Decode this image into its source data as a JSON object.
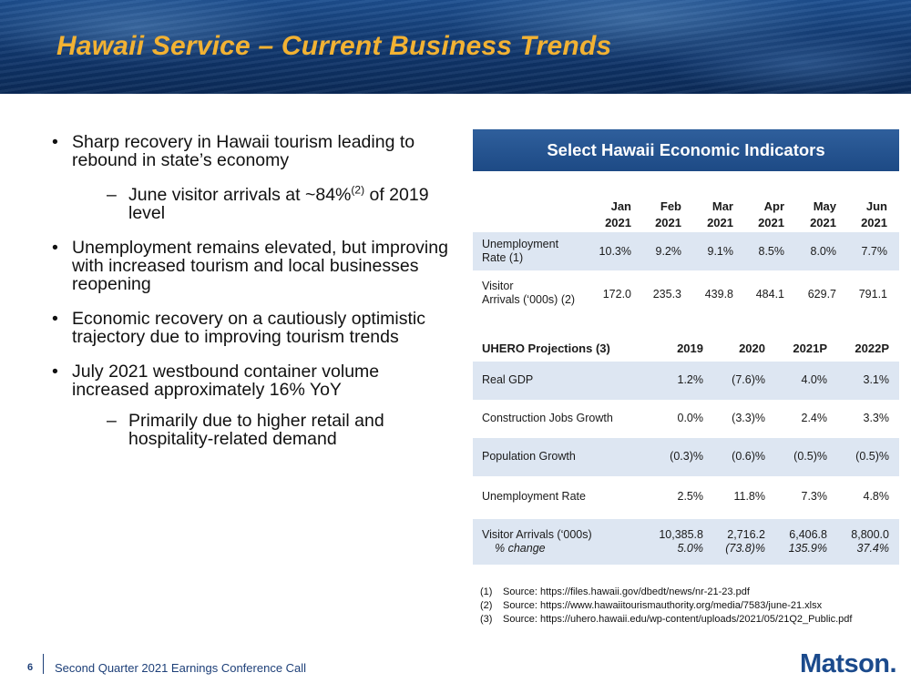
{
  "header": {
    "title": "Hawaii Service – Current Business Trends"
  },
  "bullets": [
    {
      "level": 1,
      "marker": "•",
      "text": "Sharp recovery in Hawaii tourism leading to rebound in state’s economy"
    },
    {
      "level": 2,
      "marker": "–",
      "text_before": "June visitor arrivals at ~84%",
      "superscript": "(2)",
      "text_after": " of 2019 level"
    },
    {
      "level": 1,
      "marker": "•",
      "text": "Unemployment remains elevated, but improving with increased tourism and local businesses reopening"
    },
    {
      "level": 1,
      "marker": "•",
      "text": "Economic recovery on a cautiously optimistic trajectory due to improving tourism trends"
    },
    {
      "level": 1,
      "marker": "•",
      "text": "July 2021 westbound container volume increased approximately 16% YoY"
    },
    {
      "level": 2,
      "marker": "–",
      "text": "Primarily due to higher retail and hospitality-related demand"
    }
  ],
  "panel": {
    "title": "Select Hawaii Economic Indicators",
    "indicators": {
      "months": [
        {
          "m": "Jan",
          "y": "2021"
        },
        {
          "m": "Feb",
          "y": "2021"
        },
        {
          "m": "Mar",
          "y": "2021"
        },
        {
          "m": "Apr",
          "y": "2021"
        },
        {
          "m": "May",
          "y": "2021"
        },
        {
          "m": "Jun",
          "y": "2021"
        }
      ],
      "rows": [
        {
          "label1": "Unemployment",
          "label2": "Rate (1)",
          "values": [
            "10.3%",
            "9.2%",
            "9.1%",
            "8.5%",
            "8.0%",
            "7.7%"
          ]
        },
        {
          "label1": "Visitor",
          "label2": "Arrivals (‘000s) (2)",
          "values": [
            "172.0",
            "235.3",
            "439.8",
            "484.1",
            "629.7",
            "791.1"
          ]
        }
      ]
    },
    "projections": {
      "title": "UHERO Projections (3)",
      "years": [
        "2019",
        "2020",
        "2021P",
        "2022P"
      ],
      "rows": [
        {
          "label": "Real GDP",
          "values": [
            "1.2%",
            "(7.6)%",
            "4.0%",
            "3.1%"
          ]
        },
        {
          "label": "Construction Jobs Growth",
          "values": [
            "0.0%",
            "(3.3)%",
            "2.4%",
            "3.3%"
          ]
        },
        {
          "label": "Population Growth",
          "values": [
            "(0.3)%",
            "(0.6)%",
            "(0.5)%",
            "(0.5)%"
          ]
        },
        {
          "label": "Unemployment Rate",
          "values": [
            "2.5%",
            "11.8%",
            "7.3%",
            "4.8%"
          ]
        },
        {
          "label": "Visitor Arrivals  (‘000s)",
          "sublabel": "% change",
          "values": [
            "10,385.8",
            "2,716.2",
            "6,406.8",
            "8,800.0"
          ],
          "subvalues": [
            "5.0%",
            "(73.8)%",
            "135.9%",
            "37.4%"
          ]
        }
      ]
    }
  },
  "notes": [
    {
      "n": "(1)",
      "text": "Source: https://files.hawaii.gov/dbedt/news/nr-21-23.pdf"
    },
    {
      "n": "(2)",
      "text": "Source: https://www.hawaiitourismauthority.org/media/7583/june-21.xlsx"
    },
    {
      "n": "(3)",
      "text": "Source: https://uhero.hawaii.edu/wp-content/uploads/2021/05/21Q2_Public.pdf"
    }
  ],
  "footer": {
    "page": "6",
    "text": "Second Quarter 2021 Earnings Conference Call",
    "logo": "Matson."
  },
  "colors": {
    "title": "#f2b233",
    "panel_header": "#1d4a85",
    "row_shade": "#dde6f2",
    "footer": "#1d3f78"
  }
}
